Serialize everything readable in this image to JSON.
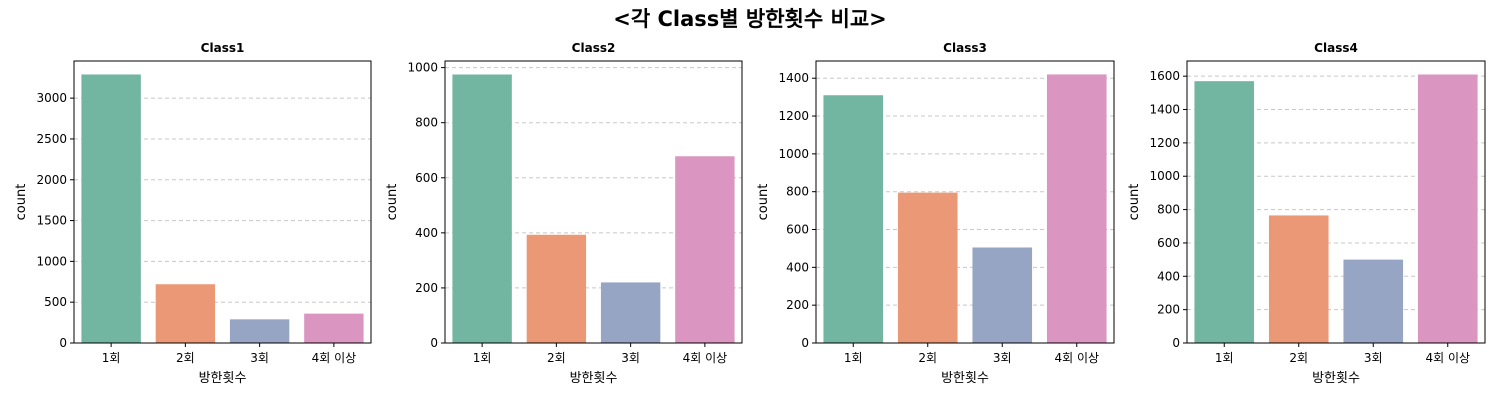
{
  "suptitle": "<각 Class별 방한횟수 비교>",
  "colors": [
    "#72b5a0",
    "#ea9875",
    "#97a5c4",
    "#da95c0"
  ],
  "chart_data": [
    {
      "type": "bar",
      "title": "Class1",
      "categories": [
        "1회",
        "2회",
        "3회",
        "4회 이상"
      ],
      "values": [
        3290,
        720,
        290,
        360
      ],
      "xlabel": "방한횟수",
      "ylabel": "count",
      "ylim": [
        0,
        3455
      ],
      "yticks": [
        0,
        500,
        1000,
        1500,
        2000,
        2500,
        3000
      ],
      "grid": "y"
    },
    {
      "type": "bar",
      "title": "Class2",
      "categories": [
        "1회",
        "2회",
        "3회",
        "4회 이상"
      ],
      "values": [
        975,
        393,
        220,
        678
      ],
      "xlabel": "방한횟수",
      "ylabel": "count",
      "ylim": [
        0,
        1024
      ],
      "yticks": [
        0,
        200,
        400,
        600,
        800,
        1000
      ],
      "grid": "y"
    },
    {
      "type": "bar",
      "title": "Class3",
      "categories": [
        "1회",
        "2회",
        "3회",
        "4회 이상"
      ],
      "values": [
        1310,
        795,
        505,
        1420
      ],
      "xlabel": "방한횟수",
      "ylabel": "count",
      "ylim": [
        0,
        1491
      ],
      "yticks": [
        0,
        200,
        400,
        600,
        800,
        1000,
        1200,
        1400
      ],
      "grid": "y"
    },
    {
      "type": "bar",
      "title": "Class4",
      "categories": [
        "1회",
        "2회",
        "3회",
        "4회 이상"
      ],
      "values": [
        1570,
        765,
        500,
        1610
      ],
      "xlabel": "방한횟수",
      "ylabel": "count",
      "ylim": [
        0,
        1691
      ],
      "yticks": [
        0,
        200,
        400,
        600,
        800,
        1000,
        1200,
        1400,
        1600
      ],
      "grid": "y"
    }
  ]
}
